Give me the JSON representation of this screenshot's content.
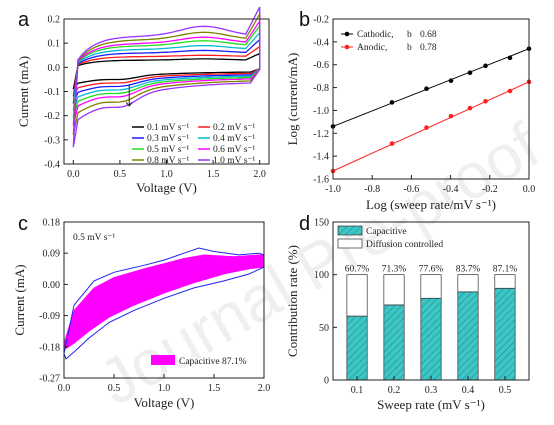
{
  "watermark": "Journal Pre-proof",
  "chart_data": [
    {
      "panel": "a",
      "type": "line",
      "xlabel": "Voltage (V)",
      "ylabel": "Current (mA)",
      "xlim": [
        -0.1,
        2.1
      ],
      "ylim": [
        -0.4,
        0.2
      ],
      "xticks": [
        "0.0",
        "0.5",
        "1.0",
        "1.5",
        "2.0"
      ],
      "yticks": [
        "-0.4",
        "-0.3",
        "-0.2",
        "-0.1",
        "0.0",
        "0.1",
        "0.2"
      ],
      "legend_position": "bottom-right",
      "series": [
        {
          "name": "0.1 mV s⁻¹",
          "color": "#000000",
          "top": 0.03,
          "bottom": -0.07,
          "peak": 0.035,
          "start_low": -0.09
        },
        {
          "name": "0.2 mV s⁻¹",
          "color": "#ff1a1a",
          "top": 0.045,
          "bottom": -0.09,
          "peak": 0.05,
          "start_low": -0.12
        },
        {
          "name": "0.3 mV s⁻¹",
          "color": "#1a1aff",
          "top": 0.06,
          "bottom": -0.11,
          "peak": 0.07,
          "start_low": -0.15
        },
        {
          "name": "0.4 mV s⁻¹",
          "color": "#00bcd4",
          "top": 0.075,
          "bottom": -0.13,
          "peak": 0.09,
          "start_low": -0.18
        },
        {
          "name": "0.5 mV s⁻¹",
          "color": "#22dd22",
          "top": 0.09,
          "bottom": -0.15,
          "peak": 0.11,
          "start_low": -0.21
        },
        {
          "name": "0.6 mV s⁻¹",
          "color": "#ff00ff",
          "top": 0.1,
          "bottom": -0.17,
          "peak": 0.125,
          "start_low": -0.24
        },
        {
          "name": "0.8 mV s⁻¹",
          "color": "#808000",
          "top": 0.115,
          "bottom": -0.2,
          "peak": 0.145,
          "start_low": -0.28
        },
        {
          "name": "1.0 mV s⁻¹",
          "color": "#9933ff",
          "top": 0.13,
          "bottom": -0.23,
          "peak": 0.17,
          "start_low": -0.33
        }
      ]
    },
    {
      "panel": "b",
      "type": "scatter",
      "xlabel": "Log (sweep rate/mV s⁻¹)",
      "ylabel": "Log (current/mA)",
      "xlim": [
        -1.0,
        0.0
      ],
      "ylim": [
        -1.6,
        -0.2
      ],
      "xticks": [
        "-1.0",
        "-0.8",
        "-0.6",
        "-0.4",
        "-0.2",
        "0.0"
      ],
      "yticks": [
        "-1.6",
        "-1.4",
        "-1.2",
        "-1.0",
        "-0.8",
        "-0.6",
        "-0.4",
        "-0.2"
      ],
      "legend_position": "top-left",
      "x": [
        -1.0,
        -0.699,
        -0.523,
        -0.398,
        -0.301,
        -0.222,
        -0.097,
        0.0
      ],
      "series": [
        {
          "name": "Cathodic,",
          "b_label": "b",
          "b_value": "0.68",
          "color": "#000000",
          "values": [
            -1.14,
            -0.93,
            -0.81,
            -0.74,
            -0.67,
            -0.61,
            -0.54,
            -0.46
          ]
        },
        {
          "name": "Anodic,",
          "b_label": "b",
          "b_value": "0.78",
          "color": "#ff2020",
          "values": [
            -1.53,
            -1.29,
            -1.15,
            -1.05,
            -0.98,
            -0.92,
            -0.83,
            -0.75
          ]
        }
      ]
    },
    {
      "panel": "c",
      "type": "area",
      "annotation": "0.5 mV s⁻¹",
      "xlabel": "Voltage (V)",
      "ylabel": "Current (mA)",
      "xlim": [
        0.0,
        2.0
      ],
      "ylim": [
        -0.27,
        0.18
      ],
      "xticks": [
        "0.0",
        "0.5",
        "1.0",
        "1.5",
        "2.0"
      ],
      "yticks": [
        "-0.27",
        "-0.18",
        "-0.09",
        "0.00",
        "0.09",
        "0.18"
      ],
      "legend_position": "bottom-right",
      "fill_color": "#ff00ff",
      "line_color": "#2222ee",
      "legend": "Capacitive 87.1%",
      "cv_upper": [
        [
          0.0,
          -0.2
        ],
        [
          0.1,
          -0.06
        ],
        [
          0.3,
          0.01
        ],
        [
          0.5,
          0.035
        ],
        [
          0.8,
          0.055
        ],
        [
          1.0,
          0.07
        ],
        [
          1.2,
          0.09
        ],
        [
          1.35,
          0.105
        ],
        [
          1.5,
          0.095
        ],
        [
          1.75,
          0.085
        ],
        [
          1.95,
          0.09
        ],
        [
          2.0,
          0.085
        ]
      ],
      "cv_lower": [
        [
          2.0,
          0.05
        ],
        [
          1.85,
          0.03
        ],
        [
          1.6,
          0.01
        ],
        [
          1.3,
          -0.01
        ],
        [
          1.0,
          -0.04
        ],
        [
          0.7,
          -0.075
        ],
        [
          0.45,
          -0.11
        ],
        [
          0.25,
          -0.155
        ],
        [
          0.1,
          -0.195
        ],
        [
          0.02,
          -0.215
        ],
        [
          0.0,
          -0.2
        ]
      ],
      "cap_upper": [
        [
          0.0,
          -0.17
        ],
        [
          0.1,
          -0.075
        ],
        [
          0.3,
          -0.01
        ],
        [
          0.5,
          0.02
        ],
        [
          0.8,
          0.045
        ],
        [
          1.0,
          0.06
        ],
        [
          1.2,
          0.075
        ],
        [
          1.4,
          0.085
        ],
        [
          1.7,
          0.08
        ],
        [
          1.95,
          0.085
        ],
        [
          2.0,
          0.085
        ]
      ],
      "cap_lower": [
        [
          2.0,
          0.05
        ],
        [
          1.85,
          0.045
        ],
        [
          1.6,
          0.03
        ],
        [
          1.3,
          0.005
        ],
        [
          1.0,
          -0.025
        ],
        [
          0.7,
          -0.06
        ],
        [
          0.45,
          -0.095
        ],
        [
          0.25,
          -0.135
        ],
        [
          0.1,
          -0.17
        ],
        [
          0.02,
          -0.185
        ],
        [
          0.0,
          -0.17
        ]
      ]
    },
    {
      "panel": "d",
      "type": "bar",
      "xlabel": "Sweep rate (mV s⁻¹)",
      "ylabel": "Contribution rate (%)",
      "ylim": [
        0,
        150
      ],
      "yticks": [
        "0",
        "50",
        "100",
        "150"
      ],
      "categories": [
        "0.1",
        "0.2",
        "0.3",
        "0.4",
        "0.5"
      ],
      "legend_position": "top",
      "series": [
        {
          "name": "Capacitive",
          "color": "#3ec5c5",
          "values": [
            60.7,
            71.3,
            77.6,
            83.7,
            87.1
          ]
        },
        {
          "name": "Diffusion controlled",
          "color": "#ffffff",
          "values": [
            39.3,
            28.7,
            22.4,
            16.3,
            12.9
          ]
        }
      ],
      "bar_labels": [
        "60.7%",
        "71.3%",
        "77.6%",
        "83.7%",
        "87.1%"
      ]
    }
  ]
}
